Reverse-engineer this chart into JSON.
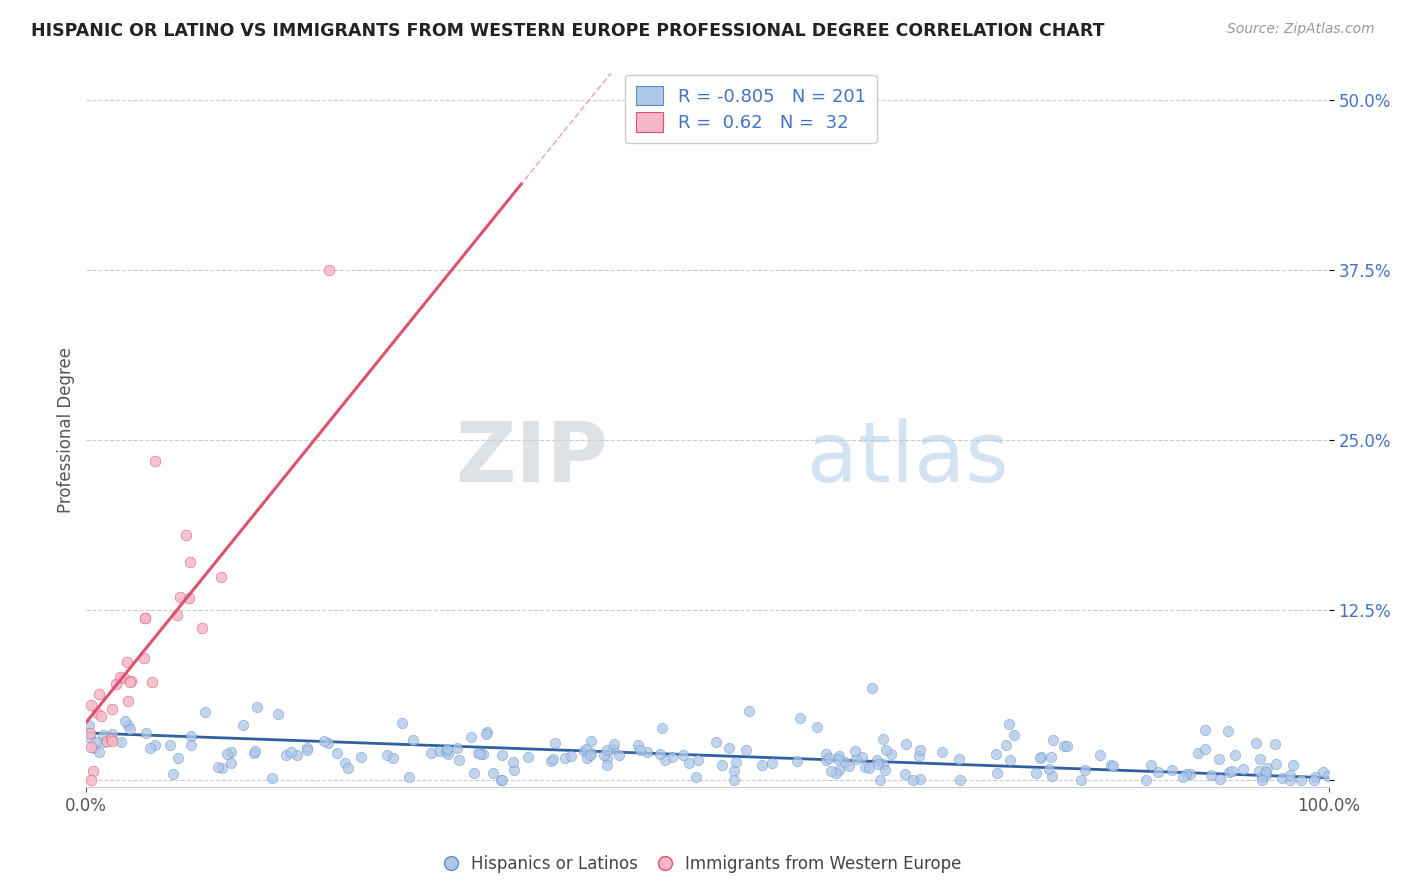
{
  "title": "HISPANIC OR LATINO VS IMMIGRANTS FROM WESTERN EUROPE PROFESSIONAL DEGREE CORRELATION CHART",
  "source_text": "Source: ZipAtlas.com",
  "ylabel": "Professional Degree",
  "xlim": [
    0,
    1.0
  ],
  "ylim": [
    -0.005,
    0.52
  ],
  "y_ticks": [
    0.0,
    0.125,
    0.25,
    0.375,
    0.5
  ],
  "y_tick_labels": [
    "",
    "12.5%",
    "25.0%",
    "37.5%",
    "50.0%"
  ],
  "blue_fill": "#aec6e8",
  "blue_edge": "#5b8ec4",
  "pink_fill": "#f4b8c8",
  "pink_edge": "#e05070",
  "blue_line_color": "#3060a0",
  "pink_line_color": "#e8507a",
  "pink_dash_color": "#e8a0b0",
  "R_blue": -0.805,
  "N_blue": 201,
  "R_pink": 0.62,
  "N_pink": 32,
  "legend_labels": [
    "Hispanics or Latinos",
    "Immigrants from Western Europe"
  ],
  "watermark_zip": "ZIP",
  "watermark_atlas": "atlas",
  "title_color": "#222222",
  "axis_color": "#4472c4",
  "grid_color": "#cccccc",
  "background_color": "#ffffff",
  "seed_blue": 12,
  "seed_pink": 77
}
